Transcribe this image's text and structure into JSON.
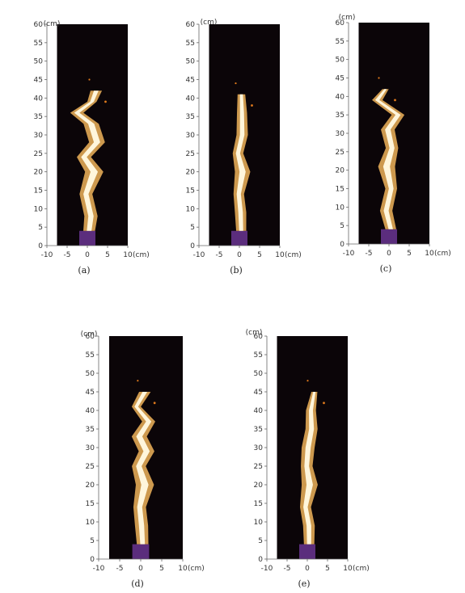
{
  "caption": "",
  "axes": {
    "unit": "(cm)",
    "y_ticks": [
      "0",
      "5",
      "10",
      "15",
      "20",
      "25",
      "30",
      "35",
      "40",
      "45",
      "50",
      "55",
      "60"
    ],
    "x_ticks": [
      "-10",
      "-5",
      "0",
      "5",
      "10"
    ]
  },
  "colors": {
    "background": "#0b0508",
    "burner": "#5b2d7d",
    "flame_core": "#fff6dc",
    "flame_edge": "#f0b45a",
    "ember": "#e07a1c"
  },
  "panels": [
    {
      "label": "(a)"
    },
    {
      "label": "(b)"
    },
    {
      "label": "(c)"
    },
    {
      "label": "(d)"
    },
    {
      "label": "(e)"
    }
  ]
}
